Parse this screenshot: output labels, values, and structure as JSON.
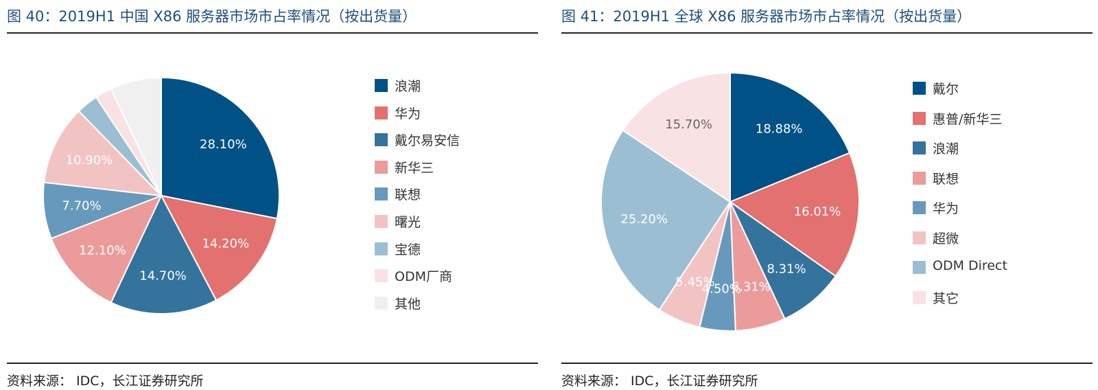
{
  "charts": [
    {
      "title": "图 40：2019H1 中国 X86 服务器市场市占率情况（按出货量）",
      "source": "资料来源：   IDC，长江证券研究所",
      "chart_data": {
        "type": "pie",
        "labels": [
          "浪潮",
          "华为",
          "戴尔易安信",
          "新华三",
          "联想",
          "曙光",
          "宝德",
          "ODM厂商",
          "其他"
        ],
        "values": [
          28.1,
          14.2,
          14.7,
          12.1,
          7.7,
          10.9,
          3.0,
          2.3,
          7.0
        ],
        "data_labels": [
          "28.10%",
          "14.20%",
          "14.70%",
          "12.10%",
          "7.70%",
          "10.90%",
          "",
          "",
          ""
        ],
        "colors": [
          "#005186",
          "#e37170",
          "#34739c",
          "#ec9b9b",
          "#6799bc",
          "#f2c3c3",
          "#9bbed3",
          "#f9e2e4",
          "#f0f0f0"
        ],
        "start_angle_deg": 0,
        "direction": "clockwise",
        "legend_position": "right"
      }
    },
    {
      "title": "图 41：2019H1 全球 X86 服务器市场市占率情况（按出货量）",
      "source": "资料来源：   IDC，长江证券研究所",
      "chart_data": {
        "type": "pie",
        "labels": [
          "戴尔",
          "惠普/新华三",
          "浪潮",
          "联想",
          "华为",
          "超微",
          "ODM Direct",
          "其它"
        ],
        "values": [
          18.88,
          16.01,
          8.31,
          6.31,
          4.5,
          5.45,
          25.2,
          15.7
        ],
        "data_labels": [
          "18.88%",
          "16.01%",
          "8.31%",
          "6.31%",
          "4.50%",
          "5.45%",
          "25.20%",
          "15.70%"
        ],
        "colors": [
          "#005186",
          "#e37170",
          "#34739c",
          "#ec9b9b",
          "#6799bc",
          "#f2c3c3",
          "#9bbed3",
          "#f9e2e4"
        ],
        "start_angle_deg": 0,
        "direction": "clockwise",
        "legend_position": "right"
      }
    }
  ]
}
